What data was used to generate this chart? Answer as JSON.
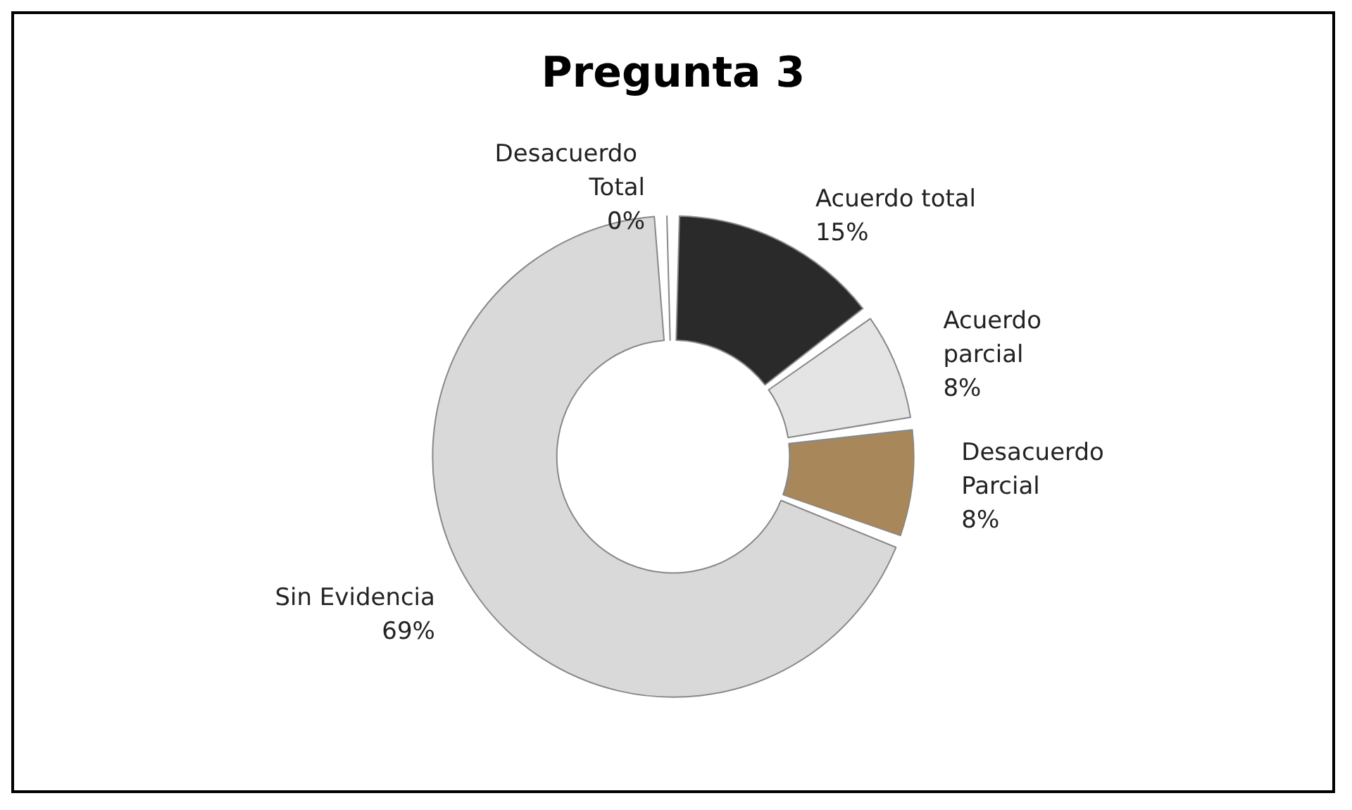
{
  "chart_data": {
    "type": "donut",
    "title": "Pregunta 3",
    "categories": [
      "Acuerdo total",
      "Acuerdo parcial",
      "Desacuerdo Parcial",
      "Sin Evidencia",
      "Desacuerdo Total"
    ],
    "values": [
      15,
      8,
      8,
      69,
      0
    ],
    "value_labels": [
      "15%",
      "8%",
      "8%",
      "69%",
      "0%"
    ],
    "colors": [
      "#2a2a2a",
      "#e4e4e4",
      "#a8875a",
      "#d9d9d9",
      "#8c8c8c"
    ],
    "legend": false
  }
}
